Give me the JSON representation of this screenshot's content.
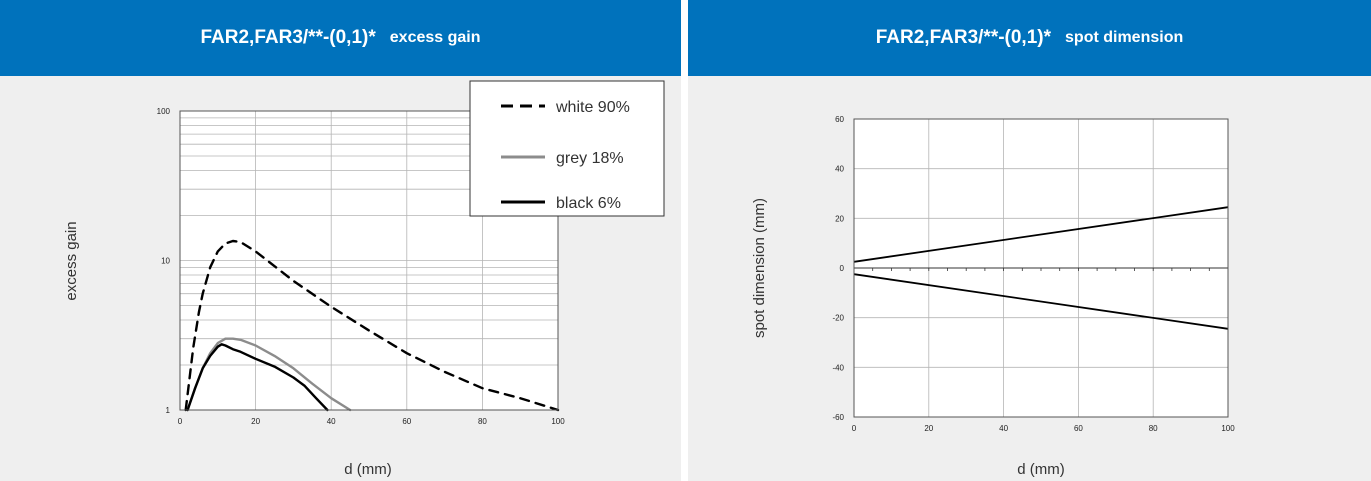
{
  "charts": [
    {
      "header": {
        "title_main": "FAR2,FAR3/**-(0,1)*",
        "title_sub": "excess gain"
      },
      "chart_data": {
        "type": "line",
        "xlabel": "d (mm)",
        "ylabel": "excess gain",
        "xlim": [
          0,
          100
        ],
        "ylim": [
          1,
          100
        ],
        "yscale": "log",
        "xticks": [
          "0",
          "20",
          "40",
          "60",
          "80",
          "100"
        ],
        "yticks": [
          "1",
          "10",
          "100"
        ],
        "grid": true,
        "legend_position": "top-right",
        "series": [
          {
            "name": "white 90%",
            "style": "dashed",
            "color": "#000000",
            "x": [
              1.5,
              2.5,
              3.5,
              5,
              6,
              8,
              10,
              12,
              14,
              16,
              20,
              30,
              40,
              50,
              60,
              70,
              80,
              90,
              100
            ],
            "y": [
              1.0,
              1.6,
              2.6,
              4.5,
              6.0,
              9.0,
              11.5,
              13.0,
              13.5,
              13.3,
              11.5,
              7.3,
              4.9,
              3.4,
              2.4,
              1.8,
              1.4,
              1.2,
              1.0
            ]
          },
          {
            "name": "grey 18%",
            "style": "solid",
            "color": "#8c8c8c",
            "x": [
              2,
              4,
              6,
              8,
              10,
              12,
              14,
              16,
              20,
              25,
              30,
              35,
              40,
              45
            ],
            "y": [
              1.0,
              1.4,
              1.9,
              2.4,
              2.8,
              3.0,
              3.0,
              2.95,
              2.7,
              2.3,
              1.9,
              1.5,
              1.2,
              1.0
            ]
          },
          {
            "name": "black 6%",
            "style": "solid",
            "color": "#000000",
            "x": [
              2,
              4,
              6,
              8,
              10,
              11,
              12,
              14,
              16,
              20,
              25,
              30,
              33,
              36,
              39
            ],
            "y": [
              1.0,
              1.4,
              1.9,
              2.3,
              2.65,
              2.75,
              2.7,
              2.55,
              2.45,
              2.2,
              1.95,
              1.65,
              1.45,
              1.2,
              1.0
            ]
          }
        ]
      }
    },
    {
      "header": {
        "title_main": "FAR2,FAR3/**-(0,1)*",
        "title_sub": "spot dimension"
      },
      "chart_data": {
        "type": "line",
        "xlabel": "d (mm)",
        "ylabel": "spot dimension (mm)",
        "xlim": [
          0,
          100
        ],
        "ylim": [
          -60,
          60
        ],
        "xticks": [
          "0",
          "20",
          "40",
          "60",
          "80",
          "100"
        ],
        "yticks": [
          "60",
          "40",
          "20",
          "0",
          "-20",
          "-40",
          "-60"
        ],
        "grid": true,
        "series": [
          {
            "style": "solid",
            "color": "#000000",
            "x": [
              0,
              100
            ],
            "y": [
              2.5,
              24.5
            ]
          },
          {
            "style": "solid",
            "color": "#000000",
            "x": [
              0,
              100
            ],
            "y": [
              -2.5,
              -24.5
            ]
          }
        ]
      }
    }
  ]
}
